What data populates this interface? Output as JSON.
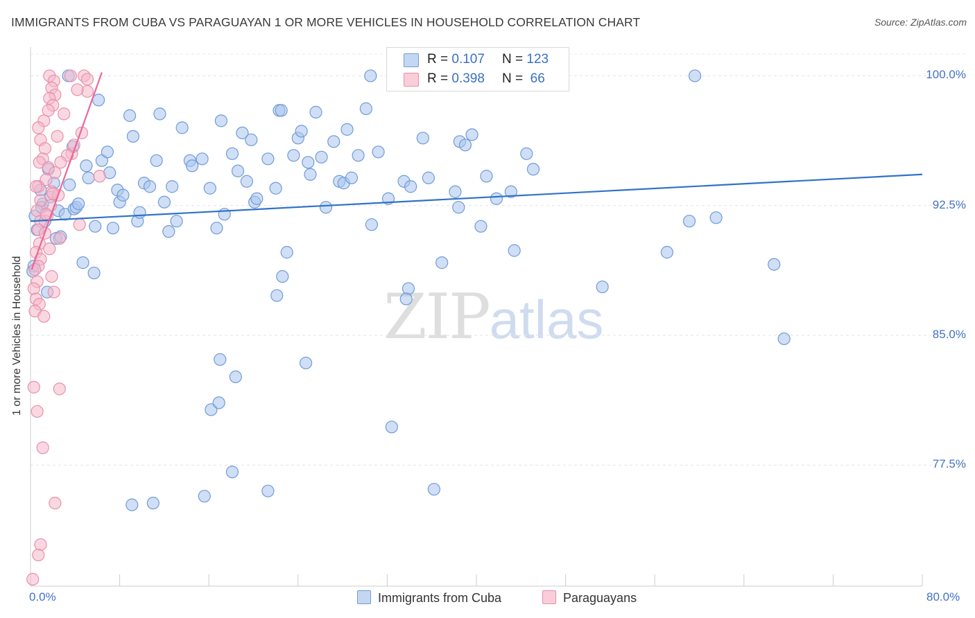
{
  "title": "IMMIGRANTS FROM CUBA VS PARAGUAYAN 1 OR MORE VEHICLES IN HOUSEHOLD CORRELATION CHART",
  "source": "Source: ZipAtlas.com",
  "watermark": {
    "zip": "ZIP",
    "atlas": "atlas"
  },
  "legend": {
    "r_label": "R =",
    "n_label": "N =",
    "rows": [
      {
        "name": "Immigrants from Cuba",
        "r": "0.107",
        "n": "123",
        "color": "#a9c4ec",
        "stroke": "#6f9bd8"
      },
      {
        "name": "Paraguayans",
        "r": "0.398",
        "n": "66",
        "color": "#f5b8ca",
        "stroke": "#e890ab"
      }
    ]
  },
  "chart_data": {
    "type": "scatter",
    "title": "IMMIGRANTS FROM CUBA VS PARAGUAYAN 1 OR MORE VEHICLES IN HOUSEHOLD CORRELATION CHART",
    "xlabel": "",
    "ylabel": "1 or more Vehicles in Household",
    "xlim": [
      0,
      80
    ],
    "ylim": [
      70.5,
      101.5
    ],
    "x_tick_labels": [
      "0.0%",
      "80.0%"
    ],
    "y_tick_labels": [
      "100.0%",
      "92.5%",
      "85.0%",
      "77.5%"
    ],
    "y_ticks": [
      100,
      92.5,
      85,
      77.5
    ],
    "series": [
      {
        "name": "Immigrants from Cuba",
        "color": "#a9c4ec",
        "stroke": "#6f9bd8",
        "line_color": "#2f72c9",
        "trend": {
          "x": [
            0,
            80
          ],
          "y": [
            91.6,
            94.3
          ]
        },
        "points": [
          [
            0.3,
            89.0
          ],
          [
            0.6,
            91.1
          ],
          [
            0.9,
            93.4
          ],
          [
            1.1,
            92.6
          ],
          [
            1.3,
            91.6
          ],
          [
            1.5,
            87.5
          ],
          [
            1.6,
            94.6
          ],
          [
            1.8,
            93.0
          ],
          [
            2.1,
            93.8
          ],
          [
            2.3,
            90.6
          ],
          [
            2.5,
            92.2
          ],
          [
            2.7,
            90.7
          ],
          [
            3.1,
            92.0
          ],
          [
            3.5,
            93.7
          ],
          [
            3.8,
            95.9
          ],
          [
            3.9,
            92.3
          ],
          [
            4.1,
            92.4
          ],
          [
            4.3,
            92.6
          ],
          [
            4.7,
            89.2
          ],
          [
            5.0,
            94.8
          ],
          [
            5.2,
            94.1
          ],
          [
            5.7,
            88.6
          ],
          [
            5.8,
            91.3
          ],
          [
            6.1,
            98.6
          ],
          [
            6.4,
            95.1
          ],
          [
            6.9,
            95.6
          ],
          [
            7.1,
            94.4
          ],
          [
            7.4,
            91.2
          ],
          [
            7.8,
            93.4
          ],
          [
            8.0,
            92.7
          ],
          [
            8.3,
            93.1
          ],
          [
            9.2,
            96.5
          ],
          [
            8.9,
            97.7
          ],
          [
            9.6,
            91.6
          ],
          [
            9.8,
            92.1
          ],
          [
            10.2,
            93.8
          ],
          [
            10.7,
            93.6
          ],
          [
            11.3,
            95.1
          ],
          [
            11.6,
            97.8
          ],
          [
            12.0,
            92.7
          ],
          [
            12.4,
            91.0
          ],
          [
            12.7,
            93.6
          ],
          [
            13.1,
            91.6
          ],
          [
            13.6,
            97.0
          ],
          [
            14.3,
            95.1
          ],
          [
            14.5,
            94.8
          ],
          [
            15.4,
            95.2
          ],
          [
            16.1,
            93.5
          ],
          [
            16.7,
            91.2
          ],
          [
            17.1,
            97.4
          ],
          [
            17.4,
            92.0
          ],
          [
            18.1,
            95.5
          ],
          [
            18.6,
            94.5
          ],
          [
            19.0,
            96.7
          ],
          [
            19.4,
            93.9
          ],
          [
            19.8,
            96.3
          ],
          [
            20.1,
            92.7
          ],
          [
            20.3,
            92.9
          ],
          [
            21.3,
            95.2
          ],
          [
            22.0,
            93.5
          ],
          [
            22.3,
            98.0
          ],
          [
            23.0,
            89.8
          ],
          [
            23.6,
            95.4
          ],
          [
            24.0,
            96.4
          ],
          [
            24.3,
            96.8
          ],
          [
            24.9,
            95.0
          ],
          [
            25.1,
            94.3
          ],
          [
            25.6,
            97.9
          ],
          [
            26.1,
            95.3
          ],
          [
            26.5,
            92.4
          ],
          [
            27.2,
            96.2
          ],
          [
            27.7,
            93.9
          ],
          [
            28.1,
            93.8
          ],
          [
            28.4,
            96.9
          ],
          [
            28.8,
            94.1
          ],
          [
            29.4,
            95.4
          ],
          [
            30.1,
            98.1
          ],
          [
            30.6,
            91.4
          ],
          [
            31.2,
            95.6
          ],
          [
            32.1,
            92.9
          ],
          [
            33.5,
            93.9
          ],
          [
            34.1,
            93.6
          ],
          [
            35.2,
            96.4
          ],
          [
            35.7,
            94.1
          ],
          [
            38.1,
            93.3
          ],
          [
            38.5,
            96.2
          ],
          [
            39.0,
            96.0
          ],
          [
            39.6,
            96.6
          ],
          [
            40.4,
            91.3
          ],
          [
            40.9,
            94.2
          ],
          [
            41.8,
            92.9
          ],
          [
            43.4,
            89.9
          ],
          [
            43.1,
            93.3
          ],
          [
            44.5,
            95.5
          ],
          [
            45.1,
            94.6
          ],
          [
            51.3,
            87.8
          ],
          [
            57.1,
            89.8
          ],
          [
            59.1,
            91.6
          ],
          [
            61.5,
            91.8
          ],
          [
            66.7,
            89.1
          ],
          [
            67.6,
            84.8
          ],
          [
            0.2,
            88.7
          ],
          [
            0.4,
            91.9
          ],
          [
            1.0,
            92.4
          ],
          [
            22.1,
            87.3
          ],
          [
            33.9,
            87.7
          ],
          [
            36.9,
            89.2
          ],
          [
            38.4,
            92.4
          ],
          [
            22.6,
            88.4
          ],
          [
            33.7,
            87.1
          ],
          [
            17.0,
            83.6
          ],
          [
            18.4,
            82.6
          ],
          [
            24.7,
            83.4
          ],
          [
            16.2,
            80.7
          ],
          [
            16.9,
            81.1
          ],
          [
            32.4,
            79.7
          ],
          [
            18.1,
            77.1
          ],
          [
            21.3,
            76.0
          ],
          [
            15.6,
            75.7
          ],
          [
            9.1,
            75.2
          ],
          [
            11.0,
            75.3
          ],
          [
            36.2,
            76.1
          ],
          [
            22.5,
            98.0
          ],
          [
            3.4,
            100.0
          ],
          [
            35.9,
            100.0
          ],
          [
            40.7,
            100.0
          ],
          [
            59.6,
            100.0
          ],
          [
            30.5,
            100.0
          ]
        ]
      },
      {
        "name": "Paraguayans",
        "color": "#f5b8ca",
        "stroke": "#e890ab",
        "line_color": "#e8679a",
        "trend": {
          "x": [
            0.1,
            6.4
          ],
          "y": [
            88.8,
            100.2
          ]
        },
        "points": [
          [
            1.7,
            100.0
          ],
          [
            3.6,
            100.0
          ],
          [
            4.8,
            100.0
          ],
          [
            2.1,
            99.7
          ],
          [
            1.9,
            99.3
          ],
          [
            2.2,
            98.9
          ],
          [
            5.1,
            99.1
          ],
          [
            1.7,
            98.7
          ],
          [
            2.0,
            98.3
          ],
          [
            1.6,
            98.0
          ],
          [
            3.0,
            97.8
          ],
          [
            1.2,
            97.4
          ],
          [
            0.7,
            97.0
          ],
          [
            2.4,
            96.5
          ],
          [
            4.6,
            96.7
          ],
          [
            0.9,
            96.3
          ],
          [
            1.3,
            95.8
          ],
          [
            3.7,
            95.5
          ],
          [
            1.1,
            95.2
          ],
          [
            0.8,
            95.0
          ],
          [
            1.6,
            94.7
          ],
          [
            2.2,
            94.4
          ],
          [
            1.4,
            94.0
          ],
          [
            6.2,
            94.2
          ],
          [
            0.7,
            93.6
          ],
          [
            1.9,
            93.3
          ],
          [
            2.5,
            93.1
          ],
          [
            0.9,
            92.8
          ],
          [
            1.8,
            92.5
          ],
          [
            0.6,
            92.2
          ],
          [
            1.5,
            91.9
          ],
          [
            0.9,
            91.6
          ],
          [
            4.4,
            91.4
          ],
          [
            0.7,
            91.1
          ],
          [
            1.3,
            90.9
          ],
          [
            2.6,
            90.6
          ],
          [
            0.8,
            90.3
          ],
          [
            1.7,
            90.0
          ],
          [
            0.5,
            89.8
          ],
          [
            0.9,
            89.4
          ],
          [
            0.7,
            89.0
          ],
          [
            0.4,
            88.8
          ],
          [
            1.9,
            88.4
          ],
          [
            0.6,
            88.1
          ],
          [
            0.3,
            87.7
          ],
          [
            2.1,
            87.5
          ],
          [
            0.5,
            87.1
          ],
          [
            0.8,
            86.8
          ],
          [
            0.4,
            86.4
          ],
          [
            1.2,
            86.1
          ],
          [
            3.3,
            95.4
          ],
          [
            2.7,
            95.0
          ],
          [
            3.9,
            96.0
          ],
          [
            0.5,
            93.6
          ],
          [
            1.4,
            92.0
          ],
          [
            2.0,
            93.2
          ],
          [
            0.3,
            82.0
          ],
          [
            2.6,
            81.9
          ],
          [
            0.6,
            80.6
          ],
          [
            1.1,
            78.5
          ],
          [
            2.2,
            75.3
          ],
          [
            0.9,
            72.9
          ],
          [
            0.7,
            72.3
          ],
          [
            0.2,
            70.9
          ],
          [
            5.1,
            99.8
          ],
          [
            4.2,
            99.2
          ]
        ]
      }
    ]
  },
  "bottom_legend": [
    "Immigrants from Cuba",
    "Paraguayans"
  ]
}
